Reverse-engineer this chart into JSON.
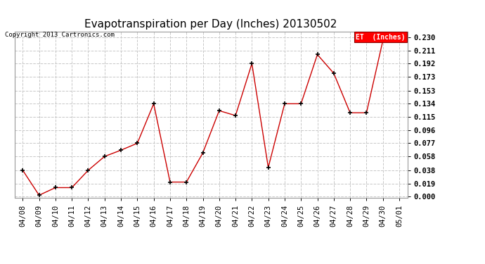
{
  "title": "Evapotranspiration per Day (Inches) 20130502",
  "copyright_text": "Copyright 2013 Cartronics.com",
  "legend_label": "ET  (Inches)",
  "line_color": "#cc0000",
  "marker_color": "#000000",
  "bg_color": "#ffffff",
  "grid_color": "#c8c8c8",
  "dates": [
    "04/08",
    "04/09",
    "04/10",
    "04/11",
    "04/12",
    "04/13",
    "04/14",
    "04/15",
    "04/16",
    "04/17",
    "04/18",
    "04/19",
    "04/20",
    "04/21",
    "04/22",
    "04/23",
    "04/24",
    "04/25",
    "04/26",
    "04/27",
    "04/28",
    "04/29",
    "04/30",
    "05/01"
  ],
  "values": [
    0.038,
    0.002,
    0.013,
    0.013,
    0.038,
    0.058,
    0.067,
    0.077,
    0.134,
    0.021,
    0.021,
    0.063,
    0.124,
    0.117,
    0.192,
    0.042,
    0.134,
    0.134,
    0.205,
    0.178,
    0.121,
    0.121,
    0.225,
    0.23
  ],
  "ylim": [
    -0.002,
    0.238
  ],
  "yticks": [
    0.0,
    0.019,
    0.038,
    0.058,
    0.077,
    0.096,
    0.115,
    0.134,
    0.153,
    0.173,
    0.192,
    0.211,
    0.23
  ],
  "title_fontsize": 11,
  "tick_fontsize": 7.5,
  "copyright_fontsize": 6.5
}
